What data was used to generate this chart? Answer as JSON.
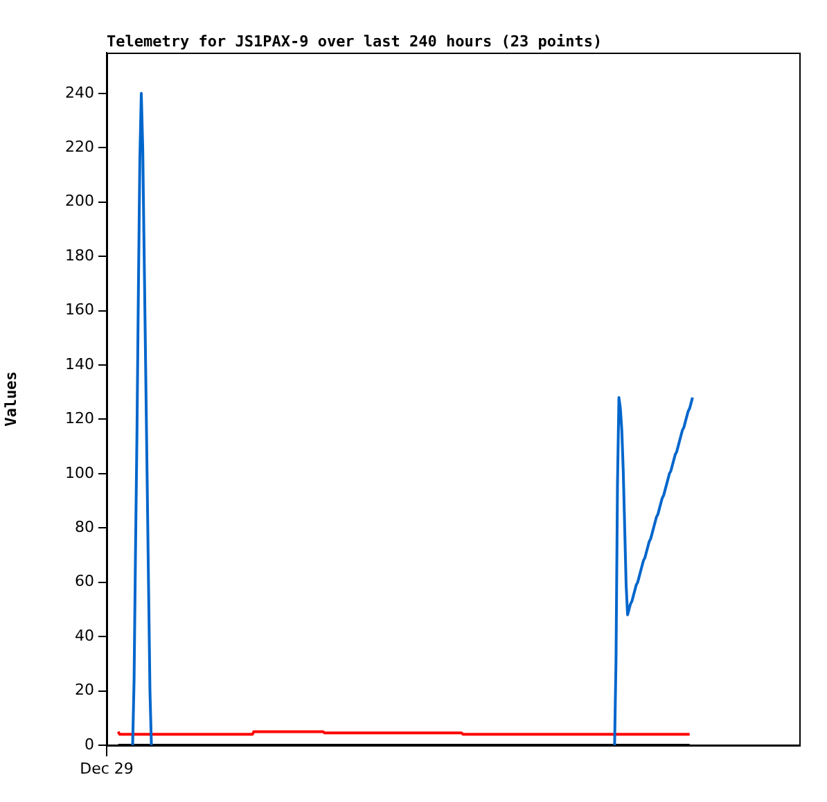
{
  "chart_data": {
    "type": "line",
    "title": "Telemetry for JS1PAX-9 over last 240 hours (23 points)",
    "ylabel": "Values",
    "categories": [
      "Dec 29",
      null,
      null,
      null,
      null,
      null,
      null,
      null,
      null,
      null,
      null,
      null,
      null,
      null,
      null,
      null,
      null,
      null,
      null,
      null,
      null,
      null,
      null,
      null,
      null,
      null,
      null,
      null,
      null,
      null,
      null,
      null,
      null,
      null,
      null,
      null,
      null,
      null,
      null,
      null,
      null,
      null,
      null,
      null,
      null,
      null,
      null,
      null,
      null,
      null,
      null,
      null,
      null,
      null,
      null,
      null,
      null,
      null,
      null,
      null,
      null,
      null,
      null,
      null,
      null,
      null,
      null,
      null,
      null,
      null,
      null,
      null,
      null,
      null,
      null,
      null,
      null,
      null,
      null,
      null,
      null,
      null,
      null,
      null,
      null,
      null,
      null,
      null,
      null,
      null,
      null,
      null,
      null,
      null,
      null,
      null,
      null,
      null,
      null,
      null,
      null,
      null,
      null,
      null,
      null,
      null,
      null,
      null,
      null,
      null,
      null,
      null,
      null,
      null,
      null,
      null,
      null,
      null,
      null,
      null,
      null,
      null,
      null,
      null,
      null,
      null,
      null,
      null,
      null,
      null,
      null,
      null,
      null,
      null,
      null,
      null,
      null,
      null,
      null,
      null,
      null,
      null,
      null,
      null,
      null,
      null,
      null,
      null,
      null,
      null,
      null,
      null,
      null,
      null,
      null,
      null,
      null,
      null,
      null,
      null,
      null,
      null,
      null,
      null,
      null,
      null,
      null,
      null,
      null,
      null,
      null,
      null,
      null,
      null,
      null,
      null,
      null,
      null,
      null,
      null,
      null,
      null,
      null,
      null,
      null,
      null,
      null,
      null,
      null,
      null,
      null,
      null,
      null,
      null,
      null,
      null,
      null,
      null,
      null,
      null,
      null,
      null,
      null,
      null,
      null,
      null,
      null,
      null,
      null,
      null,
      null,
      null,
      null,
      null,
      null,
      null,
      null,
      null,
      null,
      null,
      null,
      null,
      null,
      null,
      null,
      null,
      null,
      null,
      null,
      null,
      null,
      null,
      null,
      null,
      null,
      null,
      null,
      null,
      null,
      null,
      null,
      null,
      null,
      null,
      null,
      null,
      null,
      null,
      null,
      null,
      null,
      null,
      null,
      null,
      null,
      null,
      null,
      null,
      null,
      null,
      null,
      null,
      null,
      null,
      null,
      null,
      null,
      null,
      null,
      null,
      null,
      null,
      null,
      null,
      null,
      null,
      null,
      null,
      null,
      null,
      null,
      null,
      null,
      null,
      null,
      null,
      null,
      null,
      null,
      null,
      null,
      null,
      null,
      null,
      null,
      null,
      null,
      null,
      null,
      null,
      null,
      null,
      null,
      null,
      null,
      null,
      null,
      null,
      null,
      null,
      null,
      null,
      null,
      null,
      null,
      null,
      null,
      null,
      null,
      null,
      null,
      null,
      null,
      null,
      null,
      null,
      null,
      null,
      null,
      null,
      null,
      null,
      null,
      null,
      null,
      null,
      null,
      null,
      null,
      null,
      null,
      null,
      null,
      null,
      null,
      null,
      null,
      null,
      null,
      null,
      null,
      null,
      null,
      null,
      null,
      null,
      null,
      null,
      null,
      null,
      null,
      null,
      null,
      null,
      null,
      null,
      null,
      null,
      null,
      null,
      null,
      null,
      null,
      null,
      null,
      null,
      null,
      null,
      null,
      null,
      null,
      null,
      null,
      null,
      null,
      null,
      null,
      null,
      null,
      null,
      null,
      null,
      null,
      null,
      null,
      null,
      null,
      null,
      null,
      null,
      null,
      null,
      null,
      null,
      null,
      null,
      null,
      null,
      null,
      null,
      null,
      null,
      null,
      null,
      null,
      null,
      null,
      null,
      null,
      null,
      null,
      null,
      null,
      null,
      null,
      null,
      null,
      null,
      null,
      null,
      null,
      null,
      null,
      null,
      null,
      null,
      null,
      null,
      null,
      null,
      null,
      null,
      null,
      null,
      null,
      null,
      null,
      null,
      null,
      null,
      null,
      null,
      null,
      null,
      null,
      null,
      null,
      null,
      null,
      null,
      null,
      null,
      null,
      null,
      null,
      null,
      null,
      null,
      null,
      null,
      null,
      null,
      null,
      null,
      null,
      null,
      null,
      null,
      null,
      null,
      null
    ],
    "ylim": [
      0,
      255
    ],
    "yticks": [
      0,
      20,
      40,
      60,
      80,
      100,
      120,
      140,
      160,
      180,
      200,
      220,
      240
    ],
    "grid": false,
    "legend": false,
    "marker": "none",
    "line_style": "solid",
    "series": [
      {
        "color": "#000000",
        "values": [
          null,
          null,
          null,
          null,
          null,
          null,
          null,
          null,
          0,
          0,
          0,
          0,
          0,
          0,
          0,
          0,
          0,
          0,
          0,
          0,
          0,
          0,
          0,
          0,
          0,
          0,
          0,
          0,
          0,
          0,
          0,
          0,
          0,
          0,
          0,
          0,
          0,
          0,
          0,
          0,
          0,
          0,
          0,
          0,
          0,
          0,
          0,
          0,
          0,
          0,
          0,
          0,
          0,
          0,
          0,
          0,
          0,
          0,
          0,
          0,
          0,
          0,
          0,
          0,
          0,
          0,
          0,
          0,
          0,
          0,
          0,
          0,
          0,
          0,
          0,
          0,
          0,
          0,
          0,
          0,
          0,
          0,
          0,
          0,
          0,
          0,
          0,
          0,
          0,
          0,
          0,
          0,
          0,
          0,
          0,
          0,
          0,
          0,
          0,
          0,
          0,
          0,
          0,
          0,
          0,
          0,
          0,
          0,
          0,
          0,
          0,
          0,
          0,
          0,
          0,
          0,
          0,
          0,
          0,
          0,
          0,
          0,
          0,
          0,
          0,
          0,
          0,
          0,
          0,
          0,
          0,
          0,
          0,
          0,
          0,
          0,
          0,
          0,
          0,
          0,
          0,
          0,
          0,
          0,
          0,
          0,
          0,
          0,
          0,
          0,
          0,
          0,
          0,
          0,
          0,
          0,
          0,
          0,
          0,
          0,
          0,
          0,
          0,
          0,
          0,
          0,
          0,
          0,
          0,
          0,
          0,
          0,
          0,
          0,
          0,
          0,
          0,
          0,
          0,
          0,
          0,
          0,
          0,
          0,
          0,
          0,
          0,
          0,
          0,
          0,
          0,
          0,
          0,
          0,
          0,
          0,
          0,
          0,
          0,
          0,
          0,
          0,
          0,
          0,
          0,
          0,
          0,
          0,
          0,
          0,
          0,
          0,
          0,
          0,
          0,
          0,
          0,
          0,
          0,
          0,
          0,
          0,
          0,
          0,
          0,
          0,
          0,
          0,
          0,
          0,
          0,
          0,
          0,
          0,
          0,
          0,
          0,
          0,
          0,
          0,
          0,
          0,
          0,
          0,
          0,
          0,
          0,
          0,
          0,
          0,
          0,
          0,
          0,
          0,
          0,
          0,
          0,
          0,
          0,
          0,
          0,
          0,
          0,
          0,
          0,
          0,
          0,
          0,
          0,
          0,
          0,
          0,
          0,
          0,
          0,
          0,
          0,
          0,
          0,
          0,
          0,
          0,
          0,
          0,
          0,
          0,
          0,
          0,
          0,
          0,
          0,
          0,
          0,
          0,
          0,
          0,
          0,
          0,
          0,
          0,
          0,
          0,
          0,
          0,
          0,
          0,
          0,
          0,
          0,
          0,
          0,
          0,
          0,
          0,
          0,
          0,
          0,
          0,
          0,
          0,
          0,
          0,
          0,
          0,
          0,
          0,
          0,
          0,
          0,
          0,
          0,
          0,
          0,
          0,
          0,
          0,
          0,
          0,
          0,
          0,
          0,
          0,
          0,
          0,
          0,
          0,
          0,
          0,
          0,
          0,
          0,
          0,
          0,
          0,
          0,
          0,
          0,
          0,
          0,
          0,
          0,
          0,
          0,
          0,
          0,
          0,
          0,
          0,
          0,
          0,
          0,
          0,
          0,
          0,
          0,
          0,
          0,
          0,
          0,
          0,
          0,
          0,
          0,
          0,
          0,
          0,
          0,
          0,
          0,
          0,
          0,
          0,
          0,
          0,
          0,
          0,
          0,
          0,
          0,
          0,
          0,
          0,
          0,
          0,
          0,
          null,
          null,
          null,
          null,
          null,
          null,
          null,
          null,
          null,
          null,
          null,
          null,
          null,
          null,
          null,
          null,
          null,
          null,
          null,
          null,
          null,
          null,
          null,
          null,
          null,
          null,
          null,
          null,
          null,
          null,
          null,
          null,
          null,
          null,
          null,
          null,
          null,
          null,
          null,
          null,
          null,
          null,
          null,
          null,
          null,
          null,
          null,
          null,
          null,
          null,
          null,
          null,
          null,
          null,
          null,
          null,
          null,
          null,
          null,
          null,
          null,
          null,
          null,
          null,
          null,
          null,
          null,
          null,
          null,
          null,
          null,
          null,
          null,
          null,
          null,
          null
        ]
      },
      {
        "color": "#ff0000",
        "values": [
          null,
          null,
          null,
          null,
          null,
          null,
          null,
          null,
          5,
          4,
          4,
          4,
          4,
          4,
          4,
          4,
          4,
          4,
          4,
          4,
          4,
          4,
          4,
          4,
          4,
          4,
          4,
          4,
          4,
          4,
          4,
          4,
          4,
          4,
          4,
          4,
          4,
          4,
          4,
          4,
          4,
          4,
          4,
          4,
          4,
          4,
          4,
          4,
          4,
          4,
          4,
          4,
          4,
          4,
          4,
          4,
          4,
          4,
          4,
          4,
          4,
          4,
          4,
          4,
          4,
          4,
          4,
          4,
          4,
          4,
          4,
          4,
          4,
          4,
          4,
          4,
          4,
          4,
          4,
          4,
          4,
          4,
          4,
          4,
          4,
          4,
          4,
          4,
          4,
          4,
          4,
          4,
          4,
          4,
          4,
          4,
          4,
          4,
          4,
          4,
          4,
          4,
          5,
          5,
          5,
          5,
          5,
          5,
          5,
          5,
          5,
          5,
          5,
          5,
          5,
          5,
          5,
          5,
          5,
          5,
          5,
          5,
          5,
          5,
          5,
          5,
          5,
          5,
          5,
          5,
          5,
          5,
          5,
          5,
          5,
          5,
          5,
          5,
          5,
          5,
          5,
          5,
          5,
          5,
          5,
          5,
          5,
          5,
          5,
          5,
          5,
          4.5,
          4.5,
          4.5,
          4.5,
          4.5,
          4.5,
          4.5,
          4.5,
          4.5,
          4.5,
          4.5,
          4.5,
          4.5,
          4.5,
          4.5,
          4.5,
          4.5,
          4.5,
          4.5,
          4.5,
          4.5,
          4.5,
          4.5,
          4.5,
          4.5,
          4.5,
          4.5,
          4.5,
          4.5,
          4.5,
          4.5,
          4.5,
          4.5,
          4.5,
          4.5,
          4.5,
          4.5,
          4.5,
          4.5,
          4.5,
          4.5,
          4.5,
          4.5,
          4.5,
          4.5,
          4.5,
          4.5,
          4.5,
          4.5,
          4.5,
          4.5,
          4.5,
          4.5,
          4.5,
          4.5,
          4.5,
          4.5,
          4.5,
          4.5,
          4.5,
          4.5,
          4.5,
          4.5,
          4.5,
          4.5,
          4.5,
          4.5,
          4.5,
          4.5,
          4.5,
          4.5,
          4.5,
          4.5,
          4.5,
          4.5,
          4.5,
          4.5,
          4.5,
          4.5,
          4.5,
          4.5,
          4.5,
          4.5,
          4.5,
          4.5,
          4.5,
          4.5,
          4.5,
          4.5,
          4.5,
          4.5,
          4.5,
          4.5,
          4.5,
          4.5,
          4.5,
          4,
          4,
          4,
          4,
          4,
          4,
          4,
          4,
          4,
          4,
          4,
          4,
          4,
          4,
          4,
          4,
          4,
          4,
          4,
          4,
          4,
          4,
          4,
          4,
          4,
          4,
          4,
          4,
          4,
          4,
          4,
          4,
          4,
          4,
          4,
          4,
          4,
          4,
          4,
          4,
          4,
          4,
          4,
          4,
          4,
          4,
          4,
          4,
          4,
          4,
          4,
          4,
          4,
          4,
          4,
          4,
          4,
          4,
          4,
          4,
          4,
          4,
          4,
          4,
          4,
          4,
          4,
          4,
          4,
          4,
          4,
          4,
          4,
          4,
          4,
          4,
          4,
          4,
          4,
          4,
          4,
          4,
          4,
          4,
          4,
          4,
          4,
          4,
          4,
          4,
          4,
          4,
          4,
          4,
          4,
          4,
          4,
          4,
          4,
          4,
          4,
          4,
          4,
          4,
          4,
          4,
          4,
          4,
          4,
          4,
          4,
          4,
          4,
          4,
          4,
          4,
          4,
          4,
          4,
          4,
          4,
          4,
          4,
          4,
          4,
          4,
          4,
          4,
          4,
          4,
          4,
          4,
          4,
          4,
          4,
          4,
          4,
          4,
          4,
          4,
          4,
          4,
          4,
          4,
          4,
          4,
          4,
          4,
          4,
          4,
          4,
          4,
          4,
          4,
          4,
          4,
          4,
          4,
          null,
          null,
          null,
          null,
          null,
          null,
          null,
          null,
          null,
          null,
          null,
          null,
          null,
          null,
          null,
          null,
          null,
          null,
          null,
          null,
          null,
          null,
          null,
          null,
          null,
          null,
          null,
          null,
          null,
          null,
          null,
          null,
          null,
          null,
          null,
          null,
          null,
          null,
          null,
          null,
          null,
          null,
          null,
          null,
          null,
          null,
          null,
          null,
          null,
          null,
          null,
          null,
          null,
          null,
          null,
          null,
          null,
          null,
          null,
          null,
          null,
          null,
          null,
          null,
          null,
          null,
          null,
          null,
          null,
          null,
          null,
          null,
          null,
          null,
          null,
          null
        ]
      },
      {
        "color": "#0066cc",
        "values": [
          null,
          null,
          null,
          null,
          null,
          null,
          null,
          null,
          null,
          null,
          null,
          null,
          null,
          null,
          null,
          null,
          null,
          null,
          0,
          24,
          72,
          115,
          168,
          216,
          240,
          220,
          180,
          140,
          100,
          60,
          20,
          0,
          null,
          null,
          null,
          null,
          null,
          null,
          null,
          null,
          null,
          null,
          null,
          null,
          null,
          null,
          null,
          null,
          null,
          null,
          null,
          null,
          null,
          null,
          null,
          null,
          null,
          null,
          null,
          null,
          null,
          null,
          null,
          null,
          null,
          null,
          null,
          null,
          null,
          null,
          null,
          null,
          null,
          null,
          null,
          null,
          null,
          null,
          null,
          null,
          null,
          null,
          null,
          null,
          null,
          null,
          null,
          null,
          null,
          null,
          null,
          null,
          null,
          null,
          null,
          null,
          null,
          null,
          null,
          null,
          null,
          null,
          null,
          null,
          null,
          null,
          null,
          null,
          null,
          null,
          null,
          null,
          null,
          null,
          null,
          null,
          null,
          null,
          null,
          null,
          null,
          null,
          null,
          null,
          null,
          null,
          null,
          null,
          null,
          null,
          null,
          null,
          null,
          null,
          null,
          null,
          null,
          null,
          null,
          null,
          null,
          null,
          null,
          null,
          null,
          null,
          null,
          null,
          null,
          null,
          null,
          null,
          null,
          null,
          null,
          null,
          null,
          null,
          null,
          null,
          null,
          null,
          null,
          null,
          null,
          null,
          null,
          null,
          null,
          null,
          null,
          null,
          null,
          null,
          null,
          null,
          null,
          null,
          null,
          null,
          null,
          null,
          null,
          null,
          null,
          null,
          null,
          null,
          null,
          null,
          null,
          null,
          null,
          null,
          null,
          null,
          null,
          null,
          null,
          null,
          null,
          null,
          null,
          null,
          null,
          null,
          null,
          null,
          null,
          null,
          null,
          null,
          null,
          null,
          null,
          null,
          null,
          null,
          null,
          null,
          null,
          null,
          null,
          null,
          null,
          null,
          null,
          null,
          null,
          null,
          null,
          null,
          null,
          null,
          null,
          null,
          null,
          null,
          null,
          null,
          null,
          null,
          null,
          null,
          null,
          null,
          null,
          null,
          null,
          null,
          null,
          null,
          null,
          null,
          null,
          null,
          null,
          null,
          null,
          null,
          null,
          null,
          null,
          null,
          null,
          null,
          null,
          null,
          null,
          null,
          null,
          null,
          null,
          null,
          null,
          null,
          null,
          null,
          null,
          null,
          null,
          null,
          null,
          null,
          null,
          null,
          null,
          null,
          null,
          null,
          null,
          null,
          null,
          null,
          null,
          null,
          null,
          null,
          null,
          null,
          null,
          null,
          null,
          null,
          null,
          null,
          null,
          null,
          null,
          null,
          null,
          null,
          null,
          null,
          null,
          null,
          null,
          null,
          null,
          null,
          null,
          null,
          null,
          null,
          null,
          null,
          null,
          null,
          null,
          null,
          null,
          null,
          null,
          null,
          null,
          null,
          null,
          null,
          null,
          null,
          null,
          null,
          null,
          null,
          null,
          null,
          null,
          null,
          null,
          null,
          null,
          null,
          0,
          32,
          96,
          128,
          124,
          116,
          101,
          80,
          59,
          48,
          50,
          52,
          53,
          55,
          57,
          59,
          60,
          62,
          64,
          66,
          68,
          69,
          71,
          73,
          75,
          76,
          78,
          80,
          82,
          84,
          85,
          87,
          89,
          91,
          92,
          94,
          96,
          98,
          100,
          101,
          103,
          105,
          107,
          108,
          110,
          112,
          114,
          116,
          117,
          119,
          121,
          123,
          124,
          126,
          128,
          null,
          null,
          null,
          null,
          null,
          null,
          null,
          null,
          null,
          null,
          null,
          null,
          null,
          null,
          null,
          null,
          null,
          null,
          null,
          null,
          null,
          null,
          null,
          null,
          null,
          null,
          null,
          null,
          null,
          null,
          null,
          null,
          null,
          null,
          null,
          null,
          null,
          null,
          null,
          null,
          null,
          null,
          null,
          null,
          null,
          null,
          null,
          null,
          null,
          null,
          null,
          null,
          null,
          null,
          null,
          null,
          null,
          null,
          null,
          null,
          null,
          null,
          null,
          null,
          null,
          null,
          null,
          null,
          null,
          null,
          null,
          null,
          null,
          null
        ]
      }
    ]
  }
}
